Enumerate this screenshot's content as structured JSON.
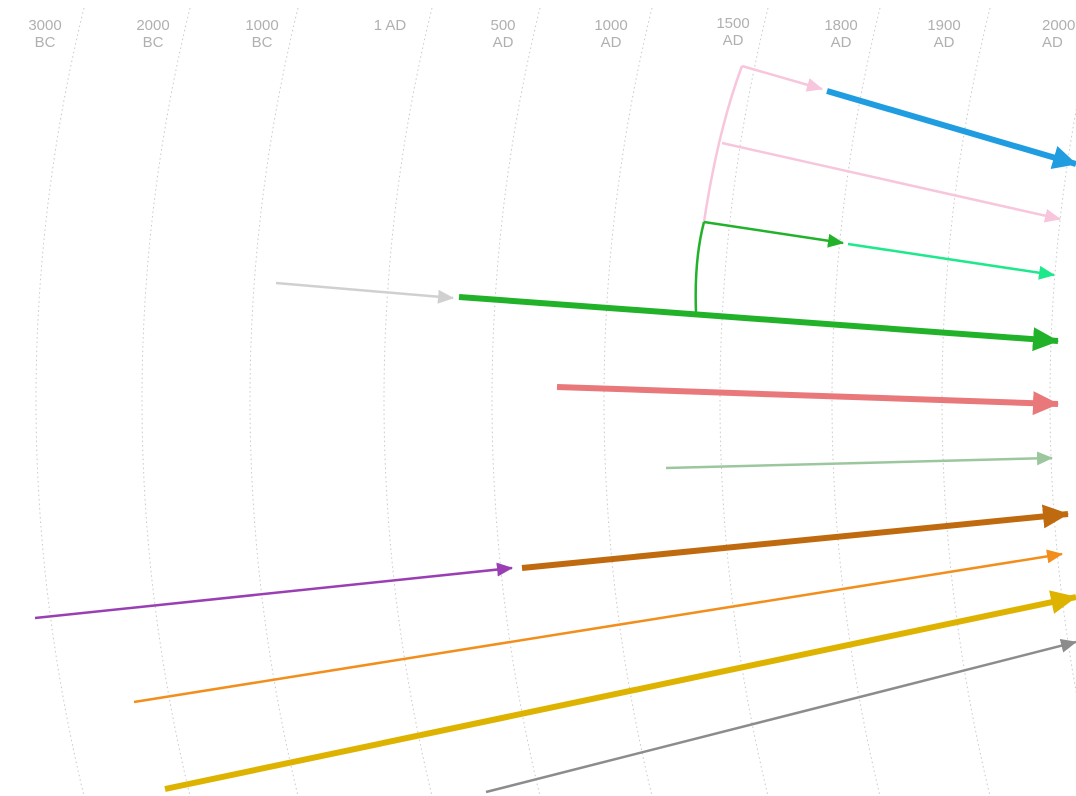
{
  "time_axis": {
    "labels": [
      {
        "year": "3000",
        "era": "BC"
      },
      {
        "year": "2000",
        "era": "BC"
      },
      {
        "year": "1000",
        "era": "BC"
      },
      {
        "year": "1 AD",
        "era": ""
      },
      {
        "year": "500",
        "era": "AD"
      },
      {
        "year": "1000",
        "era": "AD"
      },
      {
        "year": "1500",
        "era": "AD"
      },
      {
        "year": "1800",
        "era": "AD"
      },
      {
        "year": "1900",
        "era": "AD"
      },
      {
        "year": "2000",
        "era": "AD"
      }
    ]
  },
  "colors": {
    "gridline": "#c8c8c8",
    "label": "#b0b0b0",
    "pink": "#f7c6dc",
    "blue": "#1f9de0",
    "green": "#22b22a",
    "teal": "#1ee88c",
    "gray_light": "#d0d0d0",
    "salmon": "#e8787a",
    "sage": "#9cc79e",
    "brown": "#c06a10",
    "purple": "#9a3fb3",
    "orange": "#f28e1c",
    "gold": "#ddb300",
    "gray_dark": "#8c8c8c"
  }
}
